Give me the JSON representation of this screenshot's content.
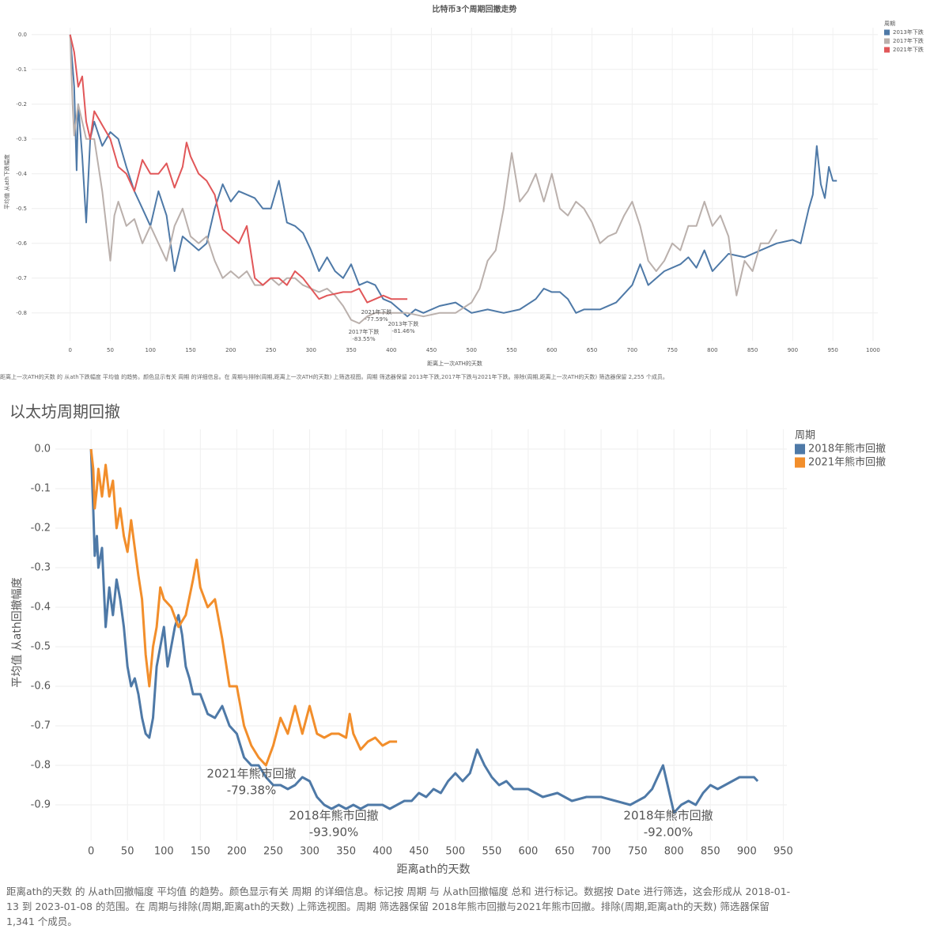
{
  "chart_data": [
    {
      "type": "line",
      "title": "比特币3个周期回撤走势",
      "x_label": "距离上一次ATH的天数",
      "y_label": "平均值 从ath下跌幅度",
      "legend_title": "周期",
      "legend": "top-right",
      "grid": true,
      "xlim": [
        -48,
        1006
      ],
      "ylim": [
        -0.88,
        0.02
      ],
      "xticks": [
        0,
        50,
        100,
        150,
        200,
        250,
        300,
        350,
        400,
        450,
        500,
        550,
        600,
        650,
        700,
        750,
        800,
        850,
        900,
        950,
        1000
      ],
      "yticks": [
        {
          "value": 0,
          "label": "0.0"
        },
        -0.1,
        -0.2,
        -0.3,
        -0.4,
        -0.5,
        -0.6,
        -0.7,
        -0.8
      ],
      "series": [
        {
          "name": "2013年下跌",
          "color": "#4e79a7",
          "x": [
            0,
            5,
            8,
            10,
            15,
            20,
            25,
            30,
            40,
            50,
            60,
            70,
            80,
            90,
            100,
            110,
            120,
            130,
            140,
            150,
            160,
            170,
            180,
            190,
            200,
            210,
            220,
            230,
            240,
            250,
            260,
            270,
            280,
            290,
            300,
            310,
            320,
            330,
            340,
            350,
            360,
            370,
            380,
            390,
            400,
            410,
            420,
            430,
            440,
            460,
            480,
            500,
            520,
            540,
            560,
            580,
            590,
            600,
            610,
            620,
            630,
            640,
            660,
            680,
            700,
            710,
            720,
            740,
            760,
            770,
            780,
            790,
            800,
            820,
            840,
            860,
            880,
            900,
            910,
            920,
            925,
            930,
            935,
            940,
            945,
            950,
            955
          ],
          "values": [
            0,
            -0.15,
            -0.39,
            -0.2,
            -0.35,
            -0.54,
            -0.3,
            -0.25,
            -0.32,
            -0.28,
            -0.3,
            -0.38,
            -0.45,
            -0.5,
            -0.55,
            -0.45,
            -0.52,
            -0.68,
            -0.58,
            -0.6,
            -0.62,
            -0.6,
            -0.5,
            -0.43,
            -0.48,
            -0.45,
            -0.46,
            -0.47,
            -0.5,
            -0.5,
            -0.42,
            -0.54,
            -0.55,
            -0.57,
            -0.62,
            -0.68,
            -0.64,
            -0.68,
            -0.7,
            -0.66,
            -0.72,
            -0.71,
            -0.72,
            -0.76,
            -0.77,
            -0.79,
            -0.81,
            -0.79,
            -0.8,
            -0.78,
            -0.77,
            -0.8,
            -0.79,
            -0.8,
            -0.79,
            -0.76,
            -0.73,
            -0.74,
            -0.74,
            -0.76,
            -0.8,
            -0.79,
            -0.79,
            -0.77,
            -0.72,
            -0.66,
            -0.72,
            -0.68,
            -0.66,
            -0.64,
            -0.67,
            -0.62,
            -0.68,
            -0.63,
            -0.64,
            -0.62,
            -0.6,
            -0.59,
            -0.6,
            -0.5,
            -0.46,
            -0.32,
            -0.43,
            -0.47,
            -0.38,
            -0.42,
            -0.42
          ]
        },
        {
          "name": "2017年下跌",
          "color": "#bab0ac",
          "x": [
            0,
            3,
            5,
            10,
            20,
            30,
            40,
            50,
            55,
            60,
            70,
            80,
            90,
            100,
            110,
            120,
            130,
            140,
            150,
            160,
            170,
            180,
            190,
            200,
            210,
            220,
            230,
            240,
            250,
            260,
            270,
            280,
            290,
            300,
            310,
            320,
            330,
            340,
            350,
            360,
            370,
            380,
            400,
            420,
            440,
            460,
            480,
            500,
            510,
            520,
            530,
            540,
            550,
            560,
            570,
            580,
            590,
            600,
            610,
            620,
            630,
            640,
            650,
            660,
            670,
            680,
            690,
            700,
            710,
            720,
            730,
            740,
            750,
            760,
            770,
            780,
            790,
            800,
            810,
            820,
            830,
            840,
            850,
            860,
            870,
            880
          ],
          "values": [
            0,
            -0.2,
            -0.29,
            -0.2,
            -0.3,
            -0.3,
            -0.45,
            -0.65,
            -0.52,
            -0.48,
            -0.55,
            -0.53,
            -0.6,
            -0.55,
            -0.6,
            -0.65,
            -0.55,
            -0.5,
            -0.58,
            -0.6,
            -0.58,
            -0.65,
            -0.7,
            -0.68,
            -0.7,
            -0.68,
            -0.72,
            -0.72,
            -0.7,
            -0.72,
            -0.7,
            -0.7,
            -0.72,
            -0.73,
            -0.74,
            -0.73,
            -0.75,
            -0.78,
            -0.82,
            -0.83,
            -0.81,
            -0.8,
            -0.8,
            -0.8,
            -0.81,
            -0.8,
            -0.8,
            -0.77,
            -0.73,
            -0.65,
            -0.62,
            -0.5,
            -0.34,
            -0.48,
            -0.45,
            -0.4,
            -0.48,
            -0.4,
            -0.5,
            -0.52,
            -0.48,
            -0.5,
            -0.54,
            -0.6,
            -0.58,
            -0.57,
            -0.52,
            -0.48,
            -0.55,
            -0.65,
            -0.68,
            -0.65,
            -0.6,
            -0.62,
            -0.55,
            -0.55,
            -0.48,
            -0.55,
            -0.52,
            -0.58,
            -0.75,
            -0.65,
            -0.68,
            -0.6,
            -0.6,
            -0.56
          ]
        },
        {
          "name": "2021年下跌",
          "color": "#e15759",
          "x": [
            0,
            5,
            10,
            15,
            20,
            25,
            30,
            40,
            50,
            60,
            70,
            80,
            90,
            100,
            110,
            120,
            130,
            140,
            145,
            150,
            160,
            170,
            180,
            190,
            200,
            210,
            220,
            230,
            240,
            250,
            260,
            270,
            280,
            290,
            300,
            310,
            320,
            340,
            350,
            360,
            370,
            380,
            390,
            400,
            410,
            420
          ],
          "values": [
            0,
            -0.05,
            -0.15,
            -0.12,
            -0.25,
            -0.3,
            -0.22,
            -0.26,
            -0.3,
            -0.38,
            -0.4,
            -0.45,
            -0.36,
            -0.4,
            -0.4,
            -0.37,
            -0.44,
            -0.38,
            -0.31,
            -0.35,
            -0.4,
            -0.42,
            -0.46,
            -0.56,
            -0.58,
            -0.6,
            -0.55,
            -0.7,
            -0.72,
            -0.7,
            -0.7,
            -0.72,
            -0.68,
            -0.7,
            -0.73,
            -0.76,
            -0.75,
            -0.74,
            -0.74,
            -0.73,
            -0.77,
            -0.76,
            -0.75,
            -0.76,
            -0.76,
            -0.76
          ]
        }
      ],
      "annotations": [
        {
          "lines": [
            "2021年下跌",
            "-77.59%"
          ]
        },
        {
          "lines": [
            "2017年下跌",
            "-83.55%"
          ]
        },
        {
          "lines": [
            "2013年下跌",
            "-81.46%"
          ]
        }
      ],
      "note": "距离上一次ATH的天数 的 从ath下跌幅度 平均值 的趋势。颜色显示有关 周期 的详细信息。在 周期与排除(周期,距离上一次ATH的天数) 上筛选视图。周期 筛选器保留 2013年下跌,2017年下跌与2021年下跌。排除(周期,距离上一次ATH的天数) 筛选器保留 2,255 个成员。"
    },
    {
      "type": "line",
      "title": "以太坊周期回撤",
      "x_label": "距离ath的天数",
      "y_label": "平均值 从ath回撤幅度",
      "legend_title": "周期",
      "legend": "top-right",
      "grid": true,
      "xlim": [
        -49,
        955
      ],
      "ylim": [
        -0.99,
        0.05
      ],
      "xticks": [
        0,
        50,
        100,
        150,
        200,
        250,
        300,
        350,
        400,
        450,
        500,
        550,
        600,
        650,
        700,
        750,
        800,
        850,
        900,
        950
      ],
      "yticks": [
        {
          "value": 0,
          "label": "0.0"
        },
        -0.1,
        -0.2,
        -0.3,
        -0.4,
        -0.5,
        -0.6,
        -0.7,
        -0.8,
        -0.9
      ],
      "series": [
        {
          "name": "2018年熊市回撤",
          "color": "#4e79a7",
          "x": [
            0,
            3,
            5,
            8,
            10,
            15,
            20,
            25,
            30,
            35,
            40,
            45,
            50,
            55,
            60,
            65,
            70,
            75,
            80,
            85,
            90,
            95,
            100,
            105,
            110,
            115,
            120,
            125,
            130,
            135,
            140,
            150,
            160,
            170,
            180,
            190,
            200,
            210,
            220,
            230,
            240,
            250,
            260,
            270,
            280,
            290,
            300,
            310,
            320,
            330,
            340,
            350,
            360,
            370,
            380,
            390,
            400,
            410,
            420,
            430,
            440,
            450,
            460,
            470,
            480,
            490,
            500,
            510,
            520,
            530,
            540,
            550,
            560,
            570,
            580,
            600,
            620,
            640,
            660,
            680,
            700,
            720,
            740,
            760,
            770,
            780,
            785,
            790,
            800,
            810,
            820,
            830,
            840,
            850,
            860,
            870,
            880,
            890,
            900,
            910,
            915
          ],
          "values": [
            0,
            -0.15,
            -0.27,
            -0.22,
            -0.3,
            -0.25,
            -0.45,
            -0.35,
            -0.42,
            -0.33,
            -0.38,
            -0.45,
            -0.55,
            -0.6,
            -0.58,
            -0.62,
            -0.68,
            -0.72,
            -0.73,
            -0.68,
            -0.55,
            -0.5,
            -0.45,
            -0.55,
            -0.5,
            -0.45,
            -0.42,
            -0.47,
            -0.55,
            -0.58,
            -0.62,
            -0.62,
            -0.67,
            -0.68,
            -0.65,
            -0.7,
            -0.72,
            -0.78,
            -0.8,
            -0.8,
            -0.83,
            -0.85,
            -0.85,
            -0.86,
            -0.85,
            -0.83,
            -0.84,
            -0.88,
            -0.9,
            -0.91,
            -0.9,
            -0.91,
            -0.9,
            -0.91,
            -0.9,
            -0.9,
            -0.9,
            -0.91,
            -0.9,
            -0.89,
            -0.89,
            -0.87,
            -0.88,
            -0.86,
            -0.87,
            -0.84,
            -0.82,
            -0.84,
            -0.82,
            -0.76,
            -0.8,
            -0.83,
            -0.85,
            -0.84,
            -0.86,
            -0.86,
            -0.88,
            -0.87,
            -0.89,
            -0.88,
            -0.88,
            -0.89,
            -0.9,
            -0.88,
            -0.86,
            -0.82,
            -0.8,
            -0.84,
            -0.92,
            -0.9,
            -0.89,
            -0.9,
            -0.87,
            -0.85,
            -0.86,
            -0.85,
            -0.84,
            -0.83,
            -0.83,
            -0.83,
            -0.84
          ]
        },
        {
          "name": "2021年熊市回撤",
          "color": "#f28e2b",
          "x": [
            0,
            3,
            5,
            8,
            10,
            15,
            20,
            25,
            30,
            35,
            40,
            45,
            50,
            55,
            60,
            65,
            70,
            75,
            80,
            85,
            90,
            95,
            100,
            110,
            120,
            130,
            140,
            145,
            150,
            160,
            170,
            180,
            190,
            200,
            210,
            220,
            230,
            240,
            250,
            260,
            270,
            280,
            290,
            300,
            310,
            320,
            330,
            340,
            350,
            355,
            360,
            370,
            380,
            390,
            400,
            410,
            420
          ],
          "values": [
            0,
            -0.05,
            -0.15,
            -0.1,
            -0.05,
            -0.12,
            -0.04,
            -0.12,
            -0.08,
            -0.2,
            -0.15,
            -0.22,
            -0.26,
            -0.18,
            -0.25,
            -0.32,
            -0.38,
            -0.52,
            -0.6,
            -0.5,
            -0.45,
            -0.35,
            -0.38,
            -0.4,
            -0.45,
            -0.42,
            -0.33,
            -0.28,
            -0.35,
            -0.4,
            -0.38,
            -0.48,
            -0.6,
            -0.6,
            -0.7,
            -0.75,
            -0.78,
            -0.8,
            -0.75,
            -0.68,
            -0.72,
            -0.65,
            -0.72,
            -0.65,
            -0.72,
            -0.73,
            -0.72,
            -0.72,
            -0.73,
            -0.67,
            -0.72,
            -0.76,
            -0.74,
            -0.73,
            -0.75,
            -0.74,
            -0.74
          ]
        }
      ],
      "annotations": [
        {
          "lines": [
            "2021年熊市回撤",
            "-79.38%"
          ]
        },
        {
          "lines": [
            "2018年熊市回撤",
            "-93.90%"
          ]
        },
        {
          "lines": [
            "2018年熊市回撤",
            "-92.00%"
          ]
        }
      ],
      "note": "距离ath的天数 的 从ath回撤幅度 平均值 的趋势。颜色显示有关 周期 的详细信息。标记按 周期 与 从ath回撤幅度 总和 进行标记。数据按 Date 进行筛选，这会形成从 2018-01-13 到 2023-01-08 的范围。在 周期与排除(周期,距离ath的天数) 上筛选视图。周期 筛选器保留 2018年熊市回撤与2021年熊市回撤。排除(周期,距离ath的天数) 筛选器保留 1,341 个成员。"
    }
  ]
}
